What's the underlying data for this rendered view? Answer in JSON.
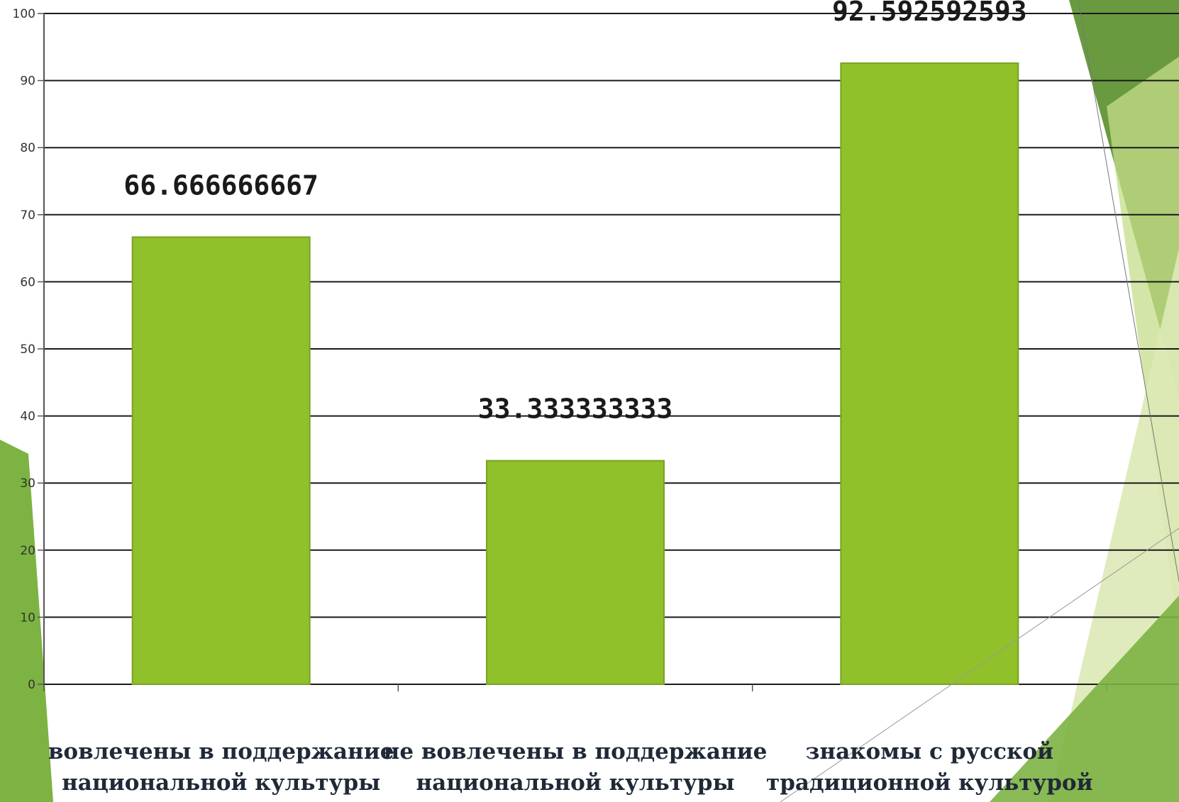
{
  "chart_data": {
    "type": "bar",
    "categories": [
      [
        "вовлечены в поддержание",
        "национальной культуры"
      ],
      [
        "не вовлечены в поддержание",
        "национальной культуры"
      ],
      [
        "знакомы с русской",
        "традиционной культурой"
      ]
    ],
    "values": [
      66.666666667,
      33.333333333,
      92.592592593
    ],
    "data_labels": [
      "66.666666667",
      "33.333333333",
      "92.592592593"
    ],
    "ylim": [
      0,
      100
    ],
    "yticks": [
      0,
      10,
      20,
      30,
      40,
      50,
      60,
      70,
      80,
      90,
      100
    ],
    "grid": true,
    "legend": "none",
    "bar_color": "#90c02a",
    "bar_stroke": "#7aa324"
  },
  "theme": {
    "accent_dark": "#6a9a3f",
    "accent_mid": "#7cb342",
    "accent_light": "#c5dd8a",
    "accent_pale": "#dde9b6"
  }
}
